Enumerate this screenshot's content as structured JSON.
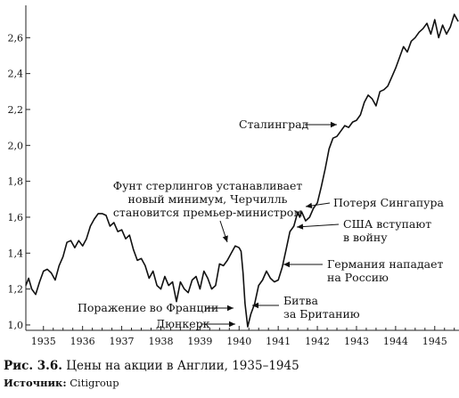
{
  "chart_data": {
    "type": "line",
    "title": "",
    "xlabel": "",
    "ylabel": "",
    "xlim": [
      1934.55,
      1945.62
    ],
    "ylim": [
      0.97,
      2.78
    ],
    "grid": false,
    "x_ticks": [
      1935,
      1936,
      1937,
      1938,
      1939,
      1940,
      1941,
      1942,
      1943,
      1944,
      1945
    ],
    "x_tick_labels": [
      "1935",
      "1936",
      "1937",
      "1938",
      "1939",
      "1940",
      "1941",
      "1942",
      "1943",
      "1944",
      "1945"
    ],
    "y_ticks": [
      1.0,
      1.2,
      1.4,
      1.6,
      1.8,
      2.0,
      2.2,
      2.4,
      2.6
    ],
    "y_tick_labels": [
      "1,0",
      "1,2",
      "1,4",
      "1,6",
      "1,8",
      "2,0",
      "2,2",
      "2,4",
      "2,6"
    ],
    "series": [
      {
        "name": "",
        "x": [
          1934.55,
          1934.62,
          1934.7,
          1934.8,
          1934.9,
          1935.0,
          1935.1,
          1935.2,
          1935.3,
          1935.4,
          1935.5,
          1935.6,
          1935.7,
          1935.8,
          1935.9,
          1936.0,
          1936.1,
          1936.2,
          1936.3,
          1936.4,
          1936.5,
          1936.6,
          1936.7,
          1936.8,
          1936.9,
          1937.0,
          1937.1,
          1937.2,
          1937.3,
          1937.4,
          1937.5,
          1937.6,
          1937.7,
          1937.8,
          1937.9,
          1938.0,
          1938.1,
          1938.2,
          1938.3,
          1938.4,
          1938.5,
          1938.6,
          1938.7,
          1938.8,
          1938.9,
          1939.0,
          1939.1,
          1939.2,
          1939.3,
          1939.4,
          1939.5,
          1939.6,
          1939.7,
          1939.8,
          1939.9,
          1940.0,
          1940.05,
          1940.1,
          1940.15,
          1940.22,
          1940.3,
          1940.4,
          1940.5,
          1940.6,
          1940.7,
          1940.8,
          1940.9,
          1941.0,
          1941.1,
          1941.2,
          1941.3,
          1941.4,
          1941.5,
          1941.55,
          1941.6,
          1941.7,
          1941.8,
          1941.9,
          1942.0,
          1942.1,
          1942.2,
          1942.3,
          1942.4,
          1942.5,
          1942.6,
          1942.7,
          1942.8,
          1942.9,
          1943.0,
          1943.1,
          1943.2,
          1943.3,
          1943.4,
          1943.5,
          1943.6,
          1943.7,
          1943.8,
          1943.9,
          1944.0,
          1944.1,
          1944.2,
          1944.3,
          1944.4,
          1944.5,
          1944.6,
          1944.7,
          1944.8,
          1944.9,
          1945.0,
          1945.1,
          1945.2,
          1945.3,
          1945.4,
          1945.5,
          1945.6
        ],
        "y": [
          1.22,
          1.26,
          1.2,
          1.17,
          1.24,
          1.3,
          1.31,
          1.29,
          1.25,
          1.33,
          1.38,
          1.46,
          1.47,
          1.43,
          1.47,
          1.44,
          1.48,
          1.55,
          1.59,
          1.62,
          1.62,
          1.61,
          1.55,
          1.57,
          1.52,
          1.53,
          1.48,
          1.5,
          1.42,
          1.36,
          1.37,
          1.33,
          1.26,
          1.3,
          1.22,
          1.2,
          1.27,
          1.22,
          1.24,
          1.13,
          1.24,
          1.2,
          1.18,
          1.25,
          1.27,
          1.2,
          1.3,
          1.26,
          1.2,
          1.22,
          1.34,
          1.33,
          1.36,
          1.4,
          1.44,
          1.43,
          1.41,
          1.29,
          1.12,
          0.99,
          1.06,
          1.12,
          1.22,
          1.25,
          1.3,
          1.26,
          1.24,
          1.25,
          1.32,
          1.42,
          1.52,
          1.55,
          1.63,
          1.6,
          1.63,
          1.58,
          1.6,
          1.65,
          1.68,
          1.77,
          1.87,
          1.98,
          2.04,
          2.05,
          2.08,
          2.11,
          2.1,
          2.13,
          2.14,
          2.17,
          2.24,
          2.28,
          2.26,
          2.22,
          2.3,
          2.31,
          2.33,
          2.38,
          2.43,
          2.49,
          2.55,
          2.52,
          2.58,
          2.6,
          2.63,
          2.65,
          2.68,
          2.62,
          2.7,
          2.6,
          2.67,
          2.62,
          2.66,
          2.73,
          2.69
        ]
      }
    ],
    "annotations": [
      {
        "lines": [
          "Сталинград"
        ],
        "point": [
          1942.5,
          2.04
        ]
      },
      {
        "lines": [
          "Фунт стерлингов устанавливает",
          "новый минимум, Черчилль",
          "становится премьер-министром"
        ],
        "point": [
          1939.95,
          1.43
        ]
      },
      {
        "lines": [
          "Потеря Сингапура"
        ],
        "point": [
          1941.62,
          1.63
        ]
      },
      {
        "lines": [
          "США вступают",
          "в войну"
        ],
        "point": [
          1941.42,
          1.55
        ]
      },
      {
        "lines": [
          "Германия нападает",
          "на Россию"
        ],
        "point": [
          1941.22,
          1.42
        ]
      },
      {
        "lines": [
          "Поражение во Франции"
        ],
        "point": [
          1940.08,
          1.05
        ]
      },
      {
        "lines": [
          "Дюнкерк"
        ],
        "point": [
          1940.2,
          0.99
        ]
      },
      {
        "lines": [
          "Битва",
          "за Британию"
        ],
        "point": [
          1940.4,
          1.06
        ]
      }
    ]
  },
  "caption": {
    "figure_number": "Рис. 3.6.",
    "text": "Цены на акции в Англии, 1935–1945"
  },
  "source": {
    "label": "Источник:",
    "text": "Citigroup"
  }
}
